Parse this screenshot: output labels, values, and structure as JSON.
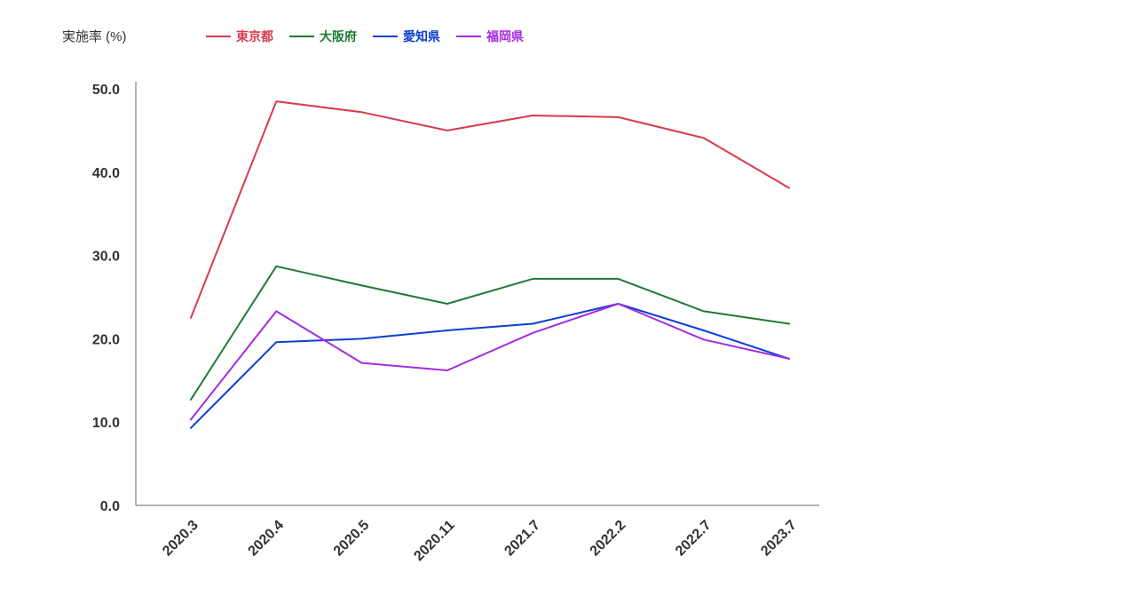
{
  "chart_data": {
    "type": "line",
    "title": "",
    "ylabel": "実施率 (%)",
    "xlabel": "",
    "categories": [
      "2020.3",
      "2020.4",
      "2020.5",
      "2020.11",
      "2021.7",
      "2022.2",
      "2022.7",
      "2023.7"
    ],
    "y_ticks": [
      "0.0",
      "10.0",
      "20.0",
      "30.0",
      "40.0",
      "50.0"
    ],
    "ylim": [
      0,
      50
    ],
    "grid": false,
    "legend_position": "top-left",
    "series": [
      {
        "name": "東京都",
        "color": "#d63b4f",
        "values": [
          22.5,
          48.5,
          47.2,
          45.0,
          46.8,
          46.6,
          44.1,
          38.1
        ]
      },
      {
        "name": "大阪府",
        "color": "#1f7a35",
        "values": [
          12.7,
          28.7,
          26.4,
          24.2,
          27.2,
          27.2,
          23.3,
          21.8
        ]
      },
      {
        "name": "愛知県",
        "color": "#0c3fd1",
        "values": [
          9.3,
          19.6,
          20.0,
          21.0,
          21.8,
          24.2,
          21.0,
          17.6
        ]
      },
      {
        "name": "福岡県",
        "color": "#a62be0",
        "values": [
          10.3,
          23.3,
          17.1,
          16.2,
          20.7,
          24.2,
          19.9,
          17.6
        ]
      }
    ]
  }
}
